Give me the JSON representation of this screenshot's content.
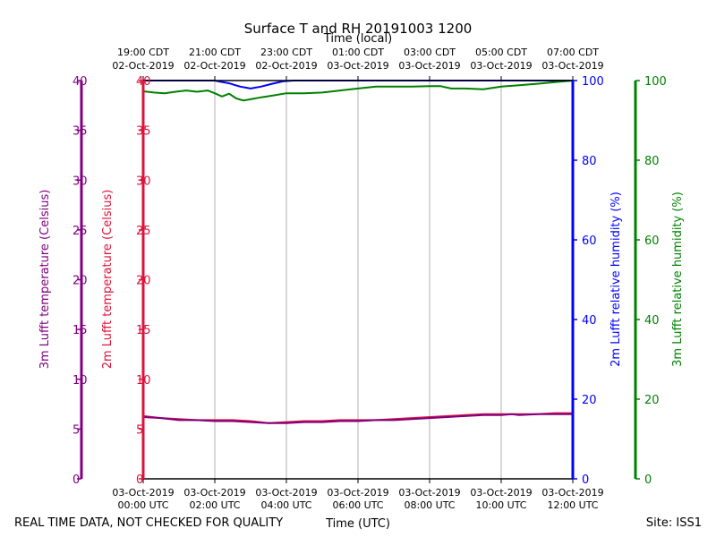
{
  "chart_data": {
    "type": "line",
    "title": "Surface T and RH 20191003 1200",
    "top_xlabel": "Time (local)",
    "xlabel": "Time (UTC)",
    "footer_left": "REAL TIME DATA, NOT CHECKED FOR QUALITY",
    "footer_right": "Site: ISS1",
    "xlim_hours": [
      0,
      12
    ],
    "bottom_ticks": [
      {
        "hour": 0,
        "line1": "03-Oct-2019",
        "line2": "00:00 UTC"
      },
      {
        "hour": 2,
        "line1": "03-Oct-2019",
        "line2": "02:00 UTC"
      },
      {
        "hour": 4,
        "line1": "03-Oct-2019",
        "line2": "04:00 UTC"
      },
      {
        "hour": 6,
        "line1": "03-Oct-2019",
        "line2": "06:00 UTC"
      },
      {
        "hour": 8,
        "line1": "03-Oct-2019",
        "line2": "08:00 UTC"
      },
      {
        "hour": 10,
        "line1": "03-Oct-2019",
        "line2": "10:00 UTC"
      },
      {
        "hour": 12,
        "line1": "03-Oct-2019",
        "line2": "12:00 UTC"
      }
    ],
    "top_ticks": [
      {
        "hour": 0,
        "line1": "19:00 CDT",
        "line2": "02-Oct-2019"
      },
      {
        "hour": 2,
        "line1": "21:00 CDT",
        "line2": "02-Oct-2019"
      },
      {
        "hour": 4,
        "line1": "23:00 CDT",
        "line2": "02-Oct-2019"
      },
      {
        "hour": 6,
        "line1": "01:00 CDT",
        "line2": "03-Oct-2019"
      },
      {
        "hour": 8,
        "line1": "03:00 CDT",
        "line2": "03-Oct-2019"
      },
      {
        "hour": 10,
        "line1": "05:00 CDT",
        "line2": "03-Oct-2019"
      },
      {
        "hour": 12,
        "line1": "07:00 CDT",
        "line2": "03-Oct-2019"
      }
    ],
    "axes": [
      {
        "id": "t3m",
        "label": "3m Lufft temperature (Celsius)",
        "color": "#800080",
        "ylim": [
          0,
          40
        ],
        "ticks": [
          0,
          5,
          10,
          15,
          20,
          25,
          30,
          35,
          40
        ]
      },
      {
        "id": "t2m",
        "label": "2m Lufft temperature (Celsius)",
        "color": "#dc143c",
        "ylim": [
          0,
          40
        ],
        "ticks": [
          0,
          5,
          10,
          15,
          20,
          25,
          30,
          35,
          40
        ]
      },
      {
        "id": "rh2m",
        "label": "2m Lufft relative humidity (%)",
        "color": "#0000ff",
        "ylim": [
          0,
          100
        ],
        "ticks": [
          0,
          20,
          40,
          60,
          80,
          100
        ]
      },
      {
        "id": "rh3m",
        "label": "3m Lufft relative humidity (%)",
        "color": "#008000",
        "ylim": [
          0,
          100
        ],
        "ticks": [
          0,
          20,
          40,
          60,
          80,
          100
        ]
      }
    ],
    "series": [
      {
        "name": "2m Lufft relative humidity",
        "axis": "rh2m",
        "color": "#0000ff",
        "x": [
          0,
          0.5,
          1.0,
          1.5,
          2.0,
          2.1,
          2.4,
          2.7,
          3.0,
          3.3,
          3.6,
          3.9,
          4.2,
          5.0,
          6.0,
          7.0,
          8.0,
          9.0,
          10.0,
          11.0,
          12.0
        ],
        "y": [
          100,
          100,
          100,
          100,
          100,
          99.8,
          99.3,
          98.5,
          98.0,
          98.5,
          99.2,
          99.8,
          100,
          100,
          100,
          100,
          100,
          100,
          100,
          100,
          100
        ]
      },
      {
        "name": "3m Lufft relative humidity",
        "axis": "rh3m",
        "color": "#008000",
        "x": [
          0,
          0.3,
          0.6,
          0.9,
          1.2,
          1.5,
          1.8,
          2.0,
          2.2,
          2.4,
          2.6,
          2.8,
          3.0,
          3.3,
          3.6,
          4.0,
          4.5,
          5.0,
          5.5,
          6.0,
          6.5,
          7.0,
          7.5,
          8.0,
          8.3,
          8.6,
          9.0,
          9.5,
          10.0,
          10.5,
          11.0,
          11.5,
          12.0
        ],
        "y": [
          97.3,
          97.0,
          96.8,
          97.2,
          97.5,
          97.2,
          97.5,
          96.8,
          96.0,
          96.7,
          95.5,
          95.0,
          95.3,
          95.8,
          96.2,
          96.8,
          96.8,
          97.0,
          97.5,
          98.0,
          98.5,
          98.5,
          98.5,
          98.6,
          98.6,
          98.0,
          98.0,
          97.8,
          98.5,
          98.8,
          99.2,
          99.6,
          100
        ]
      },
      {
        "name": "2m Lufft temperature",
        "axis": "t2m",
        "color": "#dc143c",
        "x": [
          0,
          0.5,
          1.0,
          1.5,
          2.0,
          2.5,
          3.0,
          3.5,
          4.0,
          4.5,
          5.0,
          5.5,
          6.0,
          6.5,
          7.0,
          7.5,
          8.0,
          8.5,
          9.0,
          9.5,
          10.0,
          10.5,
          11.0,
          11.5,
          12.0
        ],
        "y": [
          6.3,
          6.1,
          6.0,
          5.9,
          5.9,
          5.9,
          5.8,
          5.6,
          5.7,
          5.8,
          5.8,
          5.9,
          5.9,
          5.9,
          6.0,
          6.1,
          6.2,
          6.3,
          6.4,
          6.5,
          6.5,
          6.5,
          6.5,
          6.6,
          6.6
        ]
      },
      {
        "name": "3m Lufft temperature",
        "axis": "t3m",
        "color": "#800080",
        "x": [
          0,
          0.5,
          1.0,
          1.5,
          2.0,
          2.5,
          3.0,
          3.5,
          4.0,
          4.5,
          5.0,
          5.5,
          6.0,
          6.5,
          7.0,
          7.5,
          8.0,
          8.5,
          9.0,
          9.5,
          10.0,
          10.3,
          10.5,
          11.0,
          11.5,
          12.0
        ],
        "y": [
          6.2,
          6.1,
          5.9,
          5.9,
          5.8,
          5.8,
          5.7,
          5.6,
          5.6,
          5.7,
          5.7,
          5.8,
          5.8,
          5.9,
          5.9,
          6.0,
          6.1,
          6.2,
          6.3,
          6.4,
          6.4,
          6.5,
          6.4,
          6.5,
          6.5,
          6.5
        ]
      }
    ]
  }
}
